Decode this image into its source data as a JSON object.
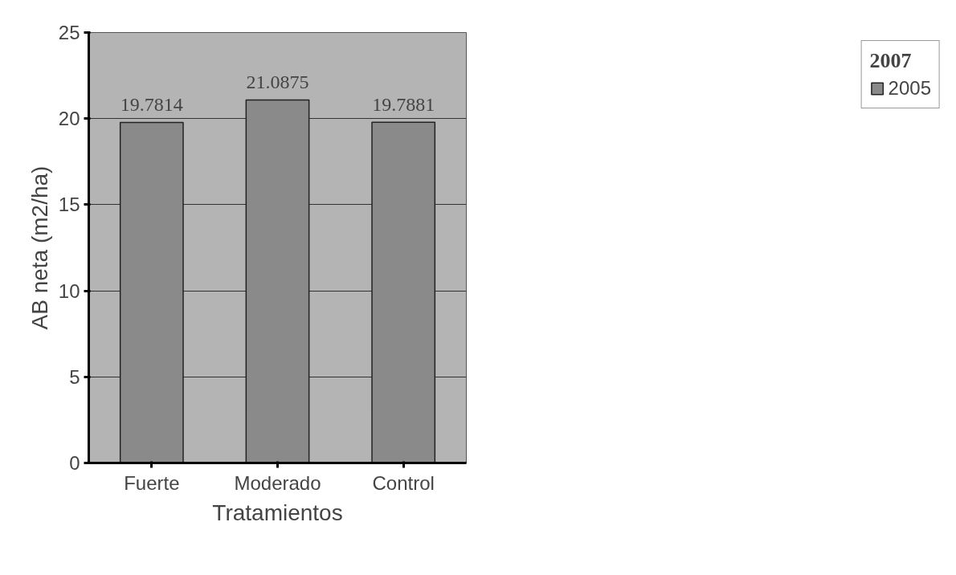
{
  "chart_data": {
    "type": "bar",
    "xlabel": "Tratamientos",
    "ylabel": "AB neta (m2/ha)",
    "legend_title": "2007",
    "categories": [
      "Fuerte",
      "Moderado",
      "Control"
    ],
    "series": [
      {
        "name": "2005",
        "color": "#8a8a8a",
        "values": [
          19.7814,
          21.0875,
          19.7881
        ]
      }
    ],
    "ylim": [
      0,
      25
    ],
    "yticks": [
      0,
      5,
      10,
      15,
      20,
      25
    ],
    "grid": "y",
    "legend": "right",
    "data_labels": true
  }
}
